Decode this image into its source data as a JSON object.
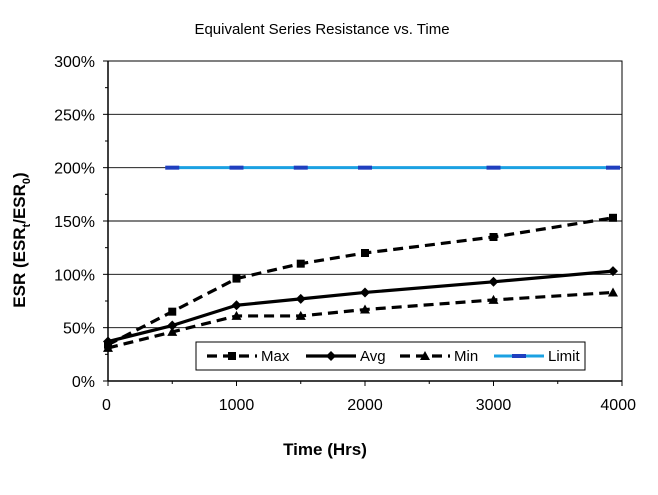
{
  "chart_data": {
    "type": "line",
    "title": "Equivalent Series Resistance vs. Time",
    "xlabel": "Time (Hrs)",
    "ylabel": {
      "text_before_sub1": "ESR (ESR",
      "sub1": "t",
      "text_between": "/ESR",
      "sub2": "0",
      "text_after": ")"
    },
    "xlim": [
      0,
      4000
    ],
    "ylim": [
      0,
      300
    ],
    "x_ticks": [
      0,
      1000,
      2000,
      3000,
      4000
    ],
    "x_tick_labels": [
      "0",
      "1000",
      "2000",
      "3000",
      "4000"
    ],
    "y_ticks": [
      0,
      50,
      100,
      150,
      200,
      250,
      300
    ],
    "y_tick_labels": [
      "0%",
      "50%",
      "100%",
      "150%",
      "200%",
      "250%",
      "300%"
    ],
    "grid": "horizontal",
    "legend_position": "bottom-center inside plot",
    "series": [
      {
        "name": "Max",
        "color": "#000000",
        "style": "dashed",
        "marker": "square",
        "x": [
          0,
          500,
          1000,
          1500,
          2000,
          3000,
          4000
        ],
        "values": [
          34,
          65,
          96,
          110,
          120,
          135,
          153
        ]
      },
      {
        "name": "Avg",
        "color": "#000000",
        "style": "solid",
        "marker": "diamond",
        "x": [
          0,
          500,
          1000,
          1500,
          2000,
          3000,
          4000
        ],
        "values": [
          37,
          52,
          71,
          77,
          83,
          93,
          103
        ]
      },
      {
        "name": "Min",
        "color": "#000000",
        "style": "dashed",
        "marker": "triangle",
        "x": [
          0,
          500,
          1000,
          1500,
          2000,
          3000,
          4000
        ],
        "values": [
          31,
          46,
          61,
          61,
          67,
          76,
          83
        ]
      },
      {
        "name": "Limit",
        "color": "#1ba1e2",
        "style": "solid",
        "marker": "dash",
        "x": [
          450,
          4000
        ],
        "values": [
          200,
          200
        ],
        "marker_x": [
          500,
          1000,
          1500,
          2000,
          3000,
          4000
        ]
      }
    ]
  }
}
